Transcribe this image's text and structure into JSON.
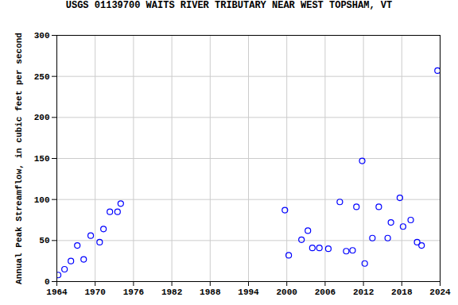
{
  "chart_data": {
    "type": "scatter",
    "title": "USGS 01139700 WAITS RIVER TRIBUTARY NEAR WEST TOPSHAM, VT",
    "y_label": "Annual Peak Streamflow, in cubic feet per second",
    "x": [
      1964.2,
      1965.2,
      1966.2,
      1967.2,
      1968.2,
      1969.3,
      1970.7,
      1971.3,
      1972.3,
      1973.5,
      1974.0,
      1999.7,
      2000.3,
      2002.3,
      2003.3,
      2004.0,
      2005.1,
      2006.5,
      2008.3,
      2009.3,
      2010.3,
      2010.9,
      2011.8,
      2012.2,
      2013.4,
      2014.4,
      2015.8,
      2016.3,
      2017.7,
      2018.2,
      2019.4,
      2020.4,
      2021.1,
      2023.6
    ],
    "values": [
      8,
      15,
      25,
      44,
      27,
      56,
      48,
      64,
      85,
      85,
      95,
      87,
      32,
      51,
      62,
      41,
      41,
      40,
      97,
      37,
      38,
      91,
      147,
      22,
      53,
      91,
      53,
      72,
      102,
      67,
      75,
      48,
      44,
      257
    ],
    "color": "#0000ff",
    "marker": "open circle",
    "xlim": [
      1964,
      2024
    ],
    "xticks": [
      1964,
      1970,
      1976,
      1982,
      1988,
      1994,
      2000,
      2006,
      2012,
      2018,
      2024
    ],
    "ylim": [
      0,
      300
    ],
    "yticks": [
      0,
      50,
      100,
      150,
      200,
      250,
      300
    ],
    "grid": true
  }
}
